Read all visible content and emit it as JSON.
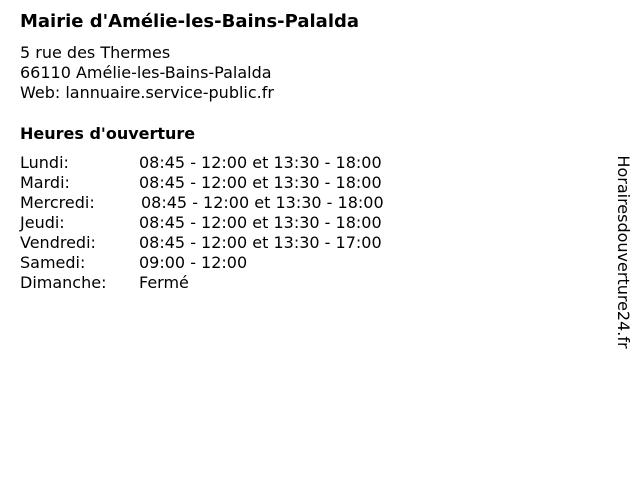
{
  "title": "Mairie d'Amélie-les-Bains-Palalda",
  "address": {
    "street": "5 rue des Thermes",
    "city": "66110 Amélie-les-Bains-Palalda",
    "web": "Web: lannuaire.service-public.fr"
  },
  "hours_heading": "Heures d'ouverture",
  "hours": [
    {
      "day": "Lundi:",
      "time": "08:45 - 12:00 et 13:30 - 18:00"
    },
    {
      "day": "Mardi:",
      "time": "08:45 - 12:00 et 13:30 - 18:00"
    },
    {
      "day": "Mercredi:",
      "time": "08:45 - 12:00 et 13:30 - 18:00"
    },
    {
      "day": "Jeudi:",
      "time": "08:45 - 12:00 et 13:30 - 18:00"
    },
    {
      "day": "Vendredi:",
      "time": "08:45 - 12:00 et 13:30 - 17:00"
    },
    {
      "day": "Samedi:",
      "time": "09:00 - 12:00"
    },
    {
      "day": "Dimanche:",
      "time": "Fermé"
    }
  ],
  "watermark": "Horairesdouverture24.fr"
}
